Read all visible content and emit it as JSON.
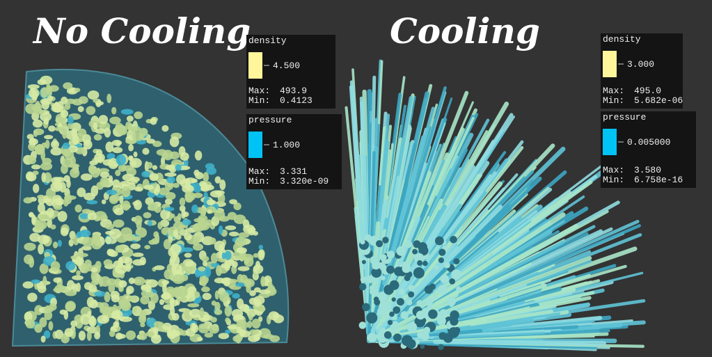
{
  "panels": [
    {
      "title": "No Cooling",
      "legends": [
        {
          "name": "density",
          "color": "#fff59a",
          "value": "4.500",
          "max_label": "Max:",
          "max": "493.9",
          "min_label": "Min:",
          "min": "0.4123"
        },
        {
          "name": "pressure",
          "color": "#00c3f5",
          "value": "1.000",
          "max_label": "Max:",
          "max": "3.331",
          "min_label": "Min:",
          "min": "3.320e-09"
        }
      ]
    },
    {
      "title": "Cooling",
      "legends": [
        {
          "name": "density",
          "color": "#fff59a",
          "value": "3.000",
          "max_label": "Max:",
          "max": "495.0",
          "min_label": "Min:",
          "min": "5.682e-06"
        },
        {
          "name": "pressure",
          "color": "#00c3f5",
          "value": "0.005000",
          "max_label": "Max:",
          "max": "3.580",
          "min_label": "Min:",
          "min": "6.758e-16"
        }
      ]
    }
  ]
}
